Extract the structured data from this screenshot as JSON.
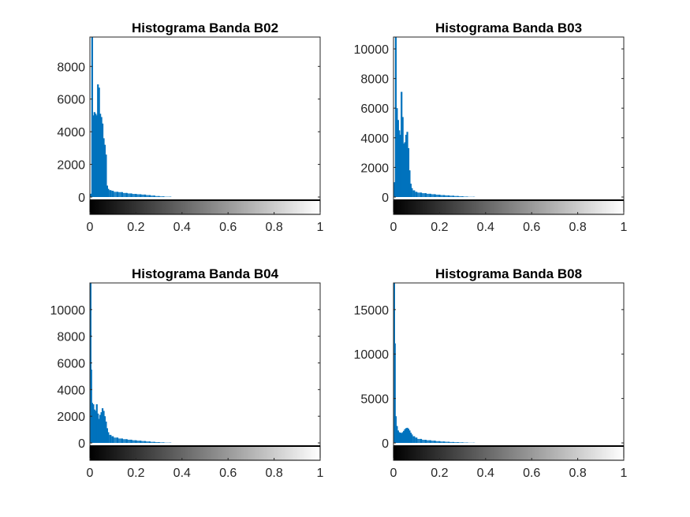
{
  "figure": {
    "background": "#ffffff",
    "bar_color": "#0072BD"
  },
  "chart_data": [
    {
      "type": "bar",
      "title": "Histograma Banda B02",
      "xlabel": "",
      "ylabel": "",
      "xlim": [
        0,
        1
      ],
      "ylim": [
        0,
        9800
      ],
      "yticks": [
        0,
        2000,
        4000,
        6000,
        8000
      ],
      "xticks": [
        0,
        0.2,
        0.4,
        0.6,
        0.8,
        1
      ],
      "grid": false,
      "colorbar": "grayscale 0 to 1 below x axis",
      "series": [
        {
          "x": [
            0.005,
            0.01,
            0.015,
            0.02,
            0.025,
            0.03,
            0.035,
            0.04,
            0.045,
            0.05,
            0.055,
            0.06,
            0.065,
            0.07,
            0.075,
            0.08,
            0.09,
            0.1,
            0.12,
            0.14,
            0.16,
            0.18,
            0.2,
            0.22,
            0.24,
            0.26,
            0.28,
            0.3,
            0.32,
            0.35
          ],
          "values": [
            200,
            9800,
            5000,
            5200,
            5100,
            5000,
            6900,
            6700,
            5100,
            4900,
            4500,
            3600,
            3200,
            2600,
            700,
            500,
            420,
            380,
            320,
            300,
            250,
            220,
            190,
            170,
            150,
            120,
            90,
            60,
            40,
            20
          ]
        }
      ]
    },
    {
      "type": "bar",
      "title": "Histograma Banda B03",
      "xlabel": "",
      "ylabel": "",
      "xlim": [
        0,
        1
      ],
      "ylim": [
        0,
        10800
      ],
      "yticks": [
        0,
        2000,
        4000,
        6000,
        8000,
        10000
      ],
      "xticks": [
        0,
        0.2,
        0.4,
        0.6,
        0.8,
        1
      ],
      "grid": false,
      "colorbar": "grayscale 0 to 1 below x axis",
      "series": [
        {
          "x": [
            0.005,
            0.01,
            0.015,
            0.02,
            0.025,
            0.03,
            0.035,
            0.04,
            0.045,
            0.05,
            0.055,
            0.06,
            0.065,
            0.07,
            0.075,
            0.08,
            0.09,
            0.1,
            0.12,
            0.14,
            0.16,
            0.18,
            0.2,
            0.22,
            0.24,
            0.26,
            0.28,
            0.3,
            0.32,
            0.35
          ],
          "values": [
            1000,
            10800,
            6000,
            5200,
            4500,
            4200,
            7100,
            5400,
            3600,
            3700,
            4200,
            4400,
            3300,
            1800,
            900,
            600,
            450,
            350,
            300,
            260,
            220,
            190,
            160,
            130,
            110,
            90,
            70,
            50,
            30,
            15
          ]
        }
      ]
    },
    {
      "type": "bar",
      "title": "Histograma Banda B04",
      "xlabel": "",
      "ylabel": "",
      "xlim": [
        0,
        1
      ],
      "ylim": [
        0,
        12000
      ],
      "yticks": [
        0,
        2000,
        4000,
        6000,
        8000,
        10000
      ],
      "xticks": [
        0,
        0.2,
        0.4,
        0.6,
        0.8,
        1
      ],
      "grid": false,
      "colorbar": "grayscale 0 to 1 below x axis",
      "series": [
        {
          "x": [
            0.003,
            0.006,
            0.01,
            0.015,
            0.02,
            0.025,
            0.03,
            0.035,
            0.04,
            0.045,
            0.05,
            0.055,
            0.06,
            0.065,
            0.07,
            0.075,
            0.08,
            0.09,
            0.1,
            0.12,
            0.14,
            0.16,
            0.18,
            0.2,
            0.22,
            0.24,
            0.26,
            0.28,
            0.3,
            0.32,
            0.35
          ],
          "values": [
            12000,
            5500,
            3000,
            2900,
            2500,
            2400,
            2900,
            2200,
            1800,
            2100,
            2300,
            2600,
            2400,
            2000,
            1600,
            1100,
            800,
            600,
            500,
            400,
            330,
            280,
            240,
            200,
            170,
            140,
            110,
            80,
            60,
            40,
            20
          ]
        }
      ]
    },
    {
      "type": "bar",
      "title": "Histograma Banda B08",
      "xlabel": "",
      "ylabel": "",
      "xlim": [
        0,
        1
      ],
      "ylim": [
        0,
        18000
      ],
      "yticks": [
        0,
        5000,
        10000,
        15000
      ],
      "xticks": [
        0,
        0.2,
        0.4,
        0.6,
        0.8,
        1
      ],
      "grid": false,
      "colorbar": "grayscale 0 to 1 below x axis",
      "series": [
        {
          "x": [
            0.003,
            0.006,
            0.01,
            0.015,
            0.02,
            0.025,
            0.03,
            0.035,
            0.04,
            0.045,
            0.05,
            0.055,
            0.06,
            0.065,
            0.07,
            0.075,
            0.08,
            0.09,
            0.1,
            0.12,
            0.14,
            0.16,
            0.18,
            0.2,
            0.22,
            0.24,
            0.26,
            0.28,
            0.3,
            0.32,
            0.35
          ],
          "values": [
            18000,
            11200,
            3000,
            1900,
            1400,
            1200,
            1150,
            1100,
            1200,
            1350,
            1550,
            1650,
            1700,
            1600,
            1400,
            1150,
            950,
            750,
            600,
            450,
            350,
            300,
            250,
            200,
            160,
            130,
            100,
            80,
            60,
            40,
            20
          ]
        }
      ]
    }
  ]
}
